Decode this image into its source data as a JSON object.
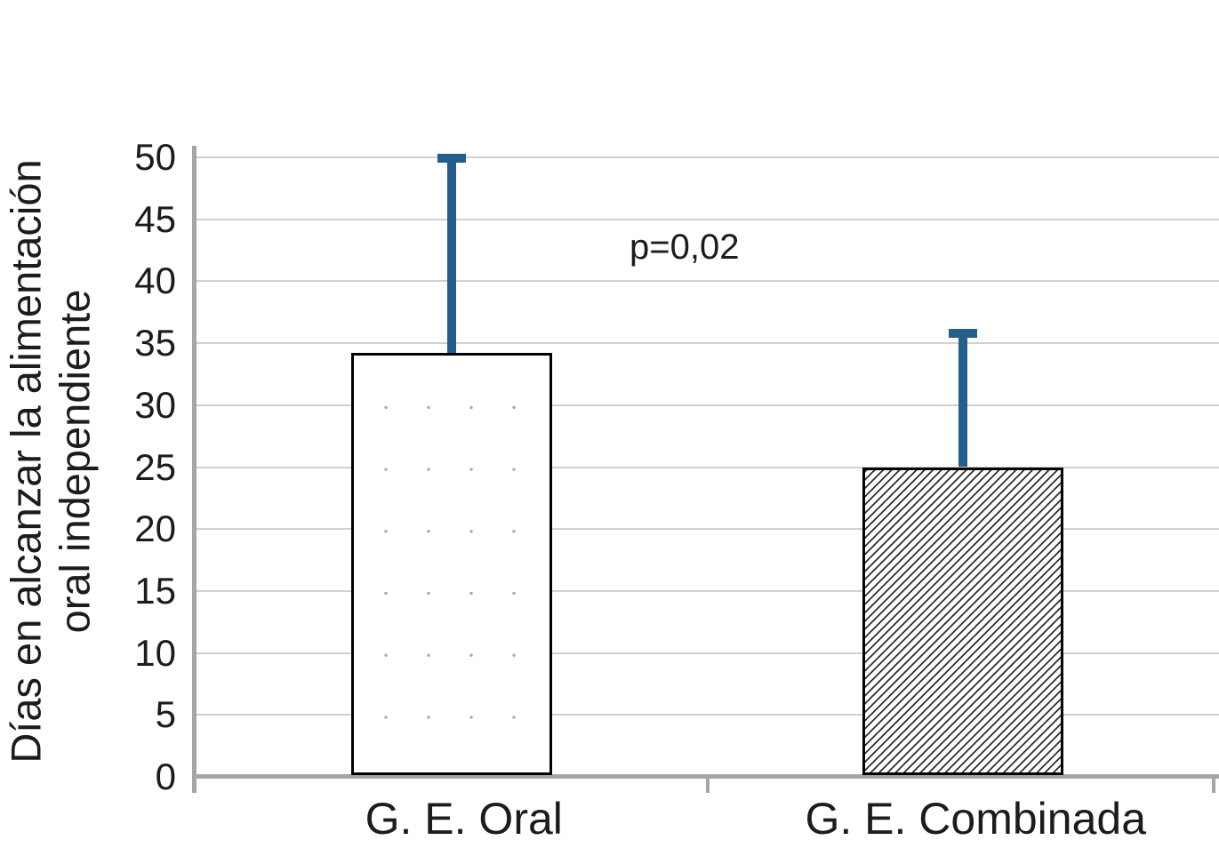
{
  "chart_data": {
    "type": "bar",
    "title": "",
    "categories": [
      "G. E. Oral",
      "G. E. Combinada"
    ],
    "values": [
      34.2,
      25
    ],
    "error_top": [
      49.9,
      35.8
    ],
    "ylabel": "Días en alcanzar la alimentación oral independiente",
    "ylabel_lines": [
      "Días en alcanzar la alimentación",
      "oral independiente"
    ],
    "xlabel": "",
    "ylim": [
      0,
      50
    ],
    "yticks": [
      0,
      5,
      10,
      15,
      20,
      25,
      30,
      35,
      40,
      45,
      50
    ],
    "grid": true,
    "legend": "none",
    "annotation": {
      "text": "p=0,02"
    },
    "bar_patterns": [
      "dotted-white",
      "diagonal-hatch"
    ],
    "colors": {
      "error_bar": "#235e8c",
      "axis": "#a6a6a6",
      "gridline": "#d0d0d0",
      "bar_border": "#000000",
      "text": "#1c1c1c",
      "background": "#ffffff"
    }
  }
}
